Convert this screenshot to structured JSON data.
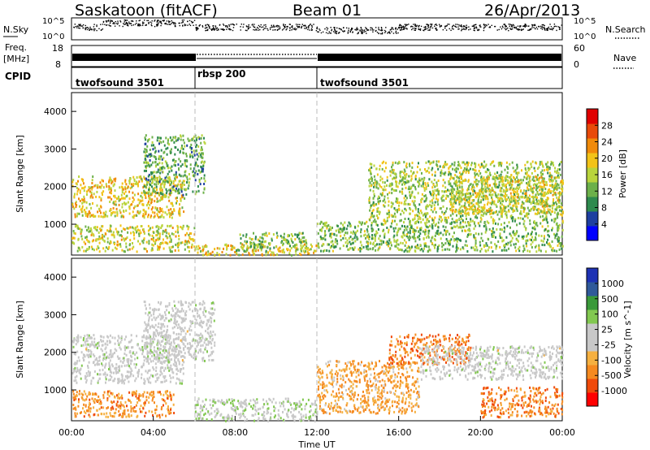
{
  "header": {
    "station": "Saskatoon (fitACF)",
    "beam": "Beam 01",
    "date": "26/Apr/2013"
  },
  "noise_panel": {
    "left_label": "N.Sky",
    "left_ticks": [
      "10^5",
      "10^0"
    ],
    "right_ticks": [
      "10^5",
      "10^0"
    ],
    "right_label": "N.Search"
  },
  "freq_panel": {
    "label_top": "Freq.",
    "label_unit": "[MHz]",
    "left_ticks": [
      "18",
      "8"
    ],
    "right_ticks": [
      "60",
      "0"
    ],
    "right_label": "Nave"
  },
  "cpid_panel": {
    "label": "CPID",
    "segments": [
      {
        "name": "twofsound 3501",
        "start_hour": 0,
        "end_hour": 6
      },
      {
        "name": "rbsp 200",
        "start_hour": 6,
        "end_hour": 12
      },
      {
        "name": "twofsound 3501",
        "start_hour": 12,
        "end_hour": 24
      }
    ]
  },
  "x_axis": {
    "label": "Time UT",
    "ticks": [
      "00:00",
      "04:00",
      "08:00",
      "12:00",
      "16:00",
      "20:00",
      "00:00"
    ]
  },
  "colors": {
    "power": [
      "#0000ff",
      "#1e3fa0",
      "#2e8a4e",
      "#6cb04a",
      "#b9d43c",
      "#f2c318",
      "#f08a0a",
      "#e84a0a",
      "#e00000"
    ],
    "velocity": [
      "#ff0000",
      "#f04a0a",
      "#f58a20",
      "#f5b040",
      "#c8c8c8",
      "#c8c8c8",
      "#82c850",
      "#3a9a3a",
      "#305a9a",
      "#1e32b4"
    ]
  },
  "chart_data": [
    {
      "type": "heatmap",
      "title": "",
      "xlabel": "Time UT",
      "ylabel": "Slant Range [km]",
      "xlim": [
        0,
        24
      ],
      "ylim": [
        180,
        4500
      ],
      "yticks": [
        "1000",
        "2000",
        "3000",
        "4000"
      ],
      "colorbar_label": "Power [dB]",
      "colorbar_ticks": [
        "4",
        "8",
        "12",
        "16",
        "20",
        "24",
        "28"
      ],
      "colorbar_range": [
        0,
        30
      ],
      "x_ticks": [
        "00:00",
        "04:00",
        "08:00",
        "12:00",
        "16:00",
        "20:00",
        "00:00"
      ],
      "echo_regions": [
        {
          "t0": 0.0,
          "t1": 5.5,
          "r0": 1200,
          "r1": 2300,
          "level": 18
        },
        {
          "t0": 0.0,
          "t1": 6.0,
          "r0": 300,
          "r1": 1000,
          "level": 16
        },
        {
          "t0": 3.5,
          "t1": 6.5,
          "r0": 1800,
          "r1": 3400,
          "level": 10
        },
        {
          "t0": 6.0,
          "t1": 12.0,
          "r0": 200,
          "r1": 500,
          "level": 18
        },
        {
          "t0": 8.0,
          "t1": 11.5,
          "r0": 300,
          "r1": 800,
          "level": 12
        },
        {
          "t0": 12.0,
          "t1": 24.0,
          "r0": 300,
          "r1": 1100,
          "level": 12
        },
        {
          "t0": 14.5,
          "t1": 24.0,
          "r0": 1100,
          "r1": 2700,
          "level": 14
        },
        {
          "t0": 18.5,
          "t1": 24.0,
          "r0": 1300,
          "r1": 2300,
          "level": 16
        }
      ]
    },
    {
      "type": "heatmap",
      "title": "",
      "xlabel": "Time UT",
      "ylabel": "Slant Range [km]",
      "xlim": [
        0,
        24
      ],
      "ylim": [
        180,
        4500
      ],
      "yticks": [
        "1000",
        "2000",
        "3000",
        "4000"
      ],
      "colorbar_label": "Velocity [m s^-1]",
      "colorbar_ticks": [
        "1000",
        "500",
        "100",
        "25",
        "-25",
        "-100",
        "-500",
        "-1000"
      ],
      "colorbar_range": [
        -1000,
        1000
      ],
      "x_ticks": [
        "00:00",
        "04:00",
        "08:00",
        "12:00",
        "16:00",
        "20:00",
        "00:00"
      ],
      "echo_regions": [
        {
          "t0": 0.0,
          "t1": 5.5,
          "r0": 1200,
          "r1": 2500,
          "level": 10
        },
        {
          "t0": 0.0,
          "t1": 5.0,
          "r0": 300,
          "r1": 1000,
          "level": -250
        },
        {
          "t0": 3.5,
          "t1": 7.0,
          "r0": 1800,
          "r1": 3400,
          "level": 10
        },
        {
          "t0": 6.0,
          "t1": 12.0,
          "r0": 200,
          "r1": 800,
          "level": 60
        },
        {
          "t0": 12.0,
          "t1": 17.0,
          "r0": 400,
          "r1": 1800,
          "level": -200
        },
        {
          "t0": 15.5,
          "t1": 19.5,
          "r0": 1700,
          "r1": 2500,
          "level": -300
        },
        {
          "t0": 17.0,
          "t1": 24.0,
          "r0": 1300,
          "r1": 2200,
          "level": 10
        },
        {
          "t0": 20.0,
          "t1": 24.0,
          "r0": 300,
          "r1": 1100,
          "level": -300
        }
      ]
    }
  ]
}
